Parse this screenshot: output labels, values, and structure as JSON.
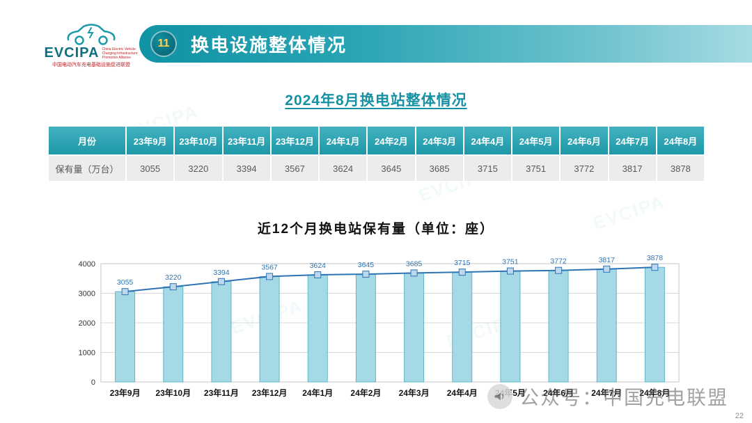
{
  "logo": {
    "name": "EVCIPA",
    "caption": "China Electric Vehicle Charging Infrastructure Promotion Alliance",
    "subtitle": "中国电动汽车充电基础设施促进联盟"
  },
  "header": {
    "badge": "11",
    "title": "换电设施整体情况"
  },
  "section_title": "2024年8月换电站整体情况",
  "table": {
    "col_header": "月份",
    "row_header": "保有量（万台）",
    "months": [
      "23年9月",
      "23年10月",
      "23年11月",
      "23年12月",
      "24年1月",
      "24年2月",
      "24年3月",
      "24年4月",
      "24年5月",
      "24年6月",
      "24年7月",
      "24年8月"
    ],
    "values": [
      "3055",
      "3220",
      "3394",
      "3567",
      "3624",
      "3645",
      "3685",
      "3715",
      "3751",
      "3772",
      "3817",
      "3878"
    ]
  },
  "chart_data": {
    "type": "bar",
    "line_overlay": true,
    "title": "近12个月换电站保有量（单位：座）",
    "categories": [
      "23年9月",
      "23年10月",
      "23年11月",
      "23年12月",
      "24年1月",
      "24年2月",
      "24年3月",
      "24年4月",
      "24年5月",
      "24年6月",
      "24年7月",
      "24年8月"
    ],
    "values": [
      3055,
      3220,
      3394,
      3567,
      3624,
      3645,
      3685,
      3715,
      3751,
      3772,
      3817,
      3878
    ],
    "xlabel": "",
    "ylabel": "",
    "ylim": [
      0,
      4000
    ],
    "yticks": [
      0,
      1000,
      2000,
      3000,
      4000
    ],
    "grid": true,
    "legend": false,
    "colors": {
      "bar_fill": "#a6d9e6",
      "bar_stroke": "#5fb6c8",
      "line": "#2e74b5",
      "marker_fill": "#bdd7ee",
      "data_label": "#2e74b5"
    }
  },
  "watermark": {
    "icon": "megaphone-icon",
    "text": "公众号：中国充电联盟",
    "brand": "EVCIPA"
  },
  "footer": {
    "page_number": "22"
  }
}
